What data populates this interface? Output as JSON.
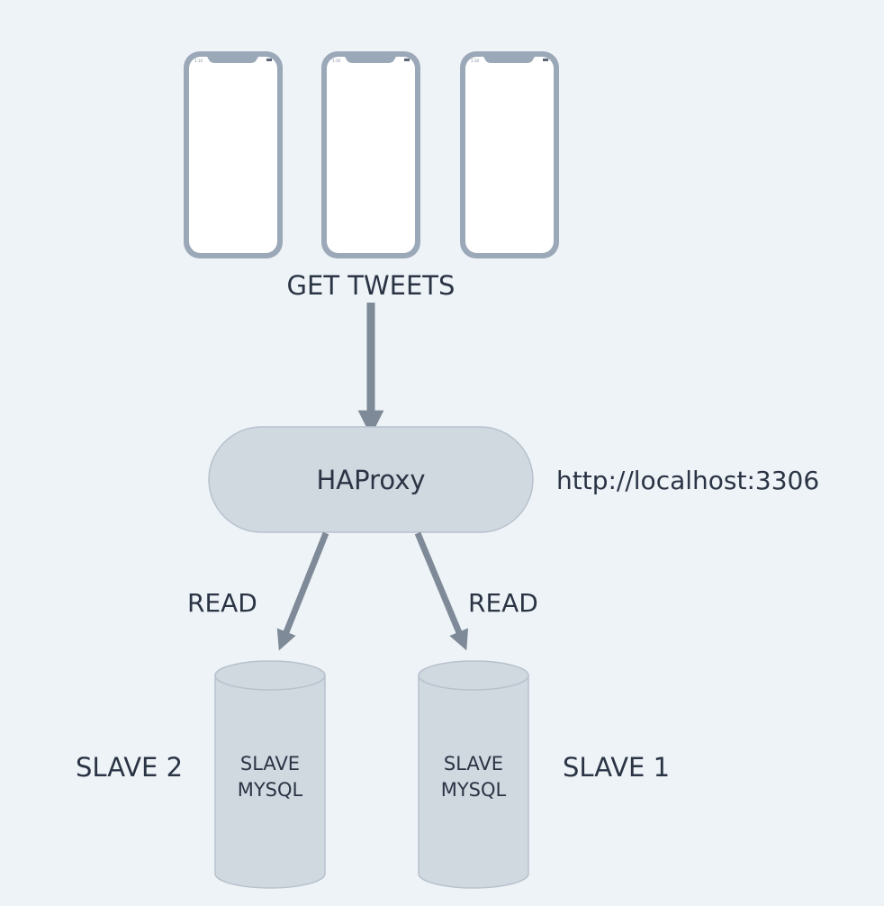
{
  "clients": {
    "action_label": "GET TWEETS",
    "phones": [
      {
        "status_time": "1:10"
      },
      {
        "status_time": "1:10"
      },
      {
        "status_time": "1:10"
      }
    ]
  },
  "proxy": {
    "label": "HAProxy",
    "address": "http://localhost:3306"
  },
  "edges": {
    "read_left": "READ",
    "read_right": "READ"
  },
  "databases": [
    {
      "cylinder_line1": "SLAVE",
      "cylinder_line2": "MYSQL",
      "side_label": "SLAVE 2"
    },
    {
      "cylinder_line1": "SLAVE",
      "cylinder_line2": "MYSQL",
      "side_label": "SLAVE 1"
    }
  ],
  "colors": {
    "background": "#eef3f7",
    "phone_frame": "#9ba8b8",
    "phone_screen": "#ffffff",
    "node_fill": "#d0d8e0",
    "node_stroke": "#b8c2cd",
    "arrow": "#7f8a98",
    "text": "#2a3444"
  }
}
